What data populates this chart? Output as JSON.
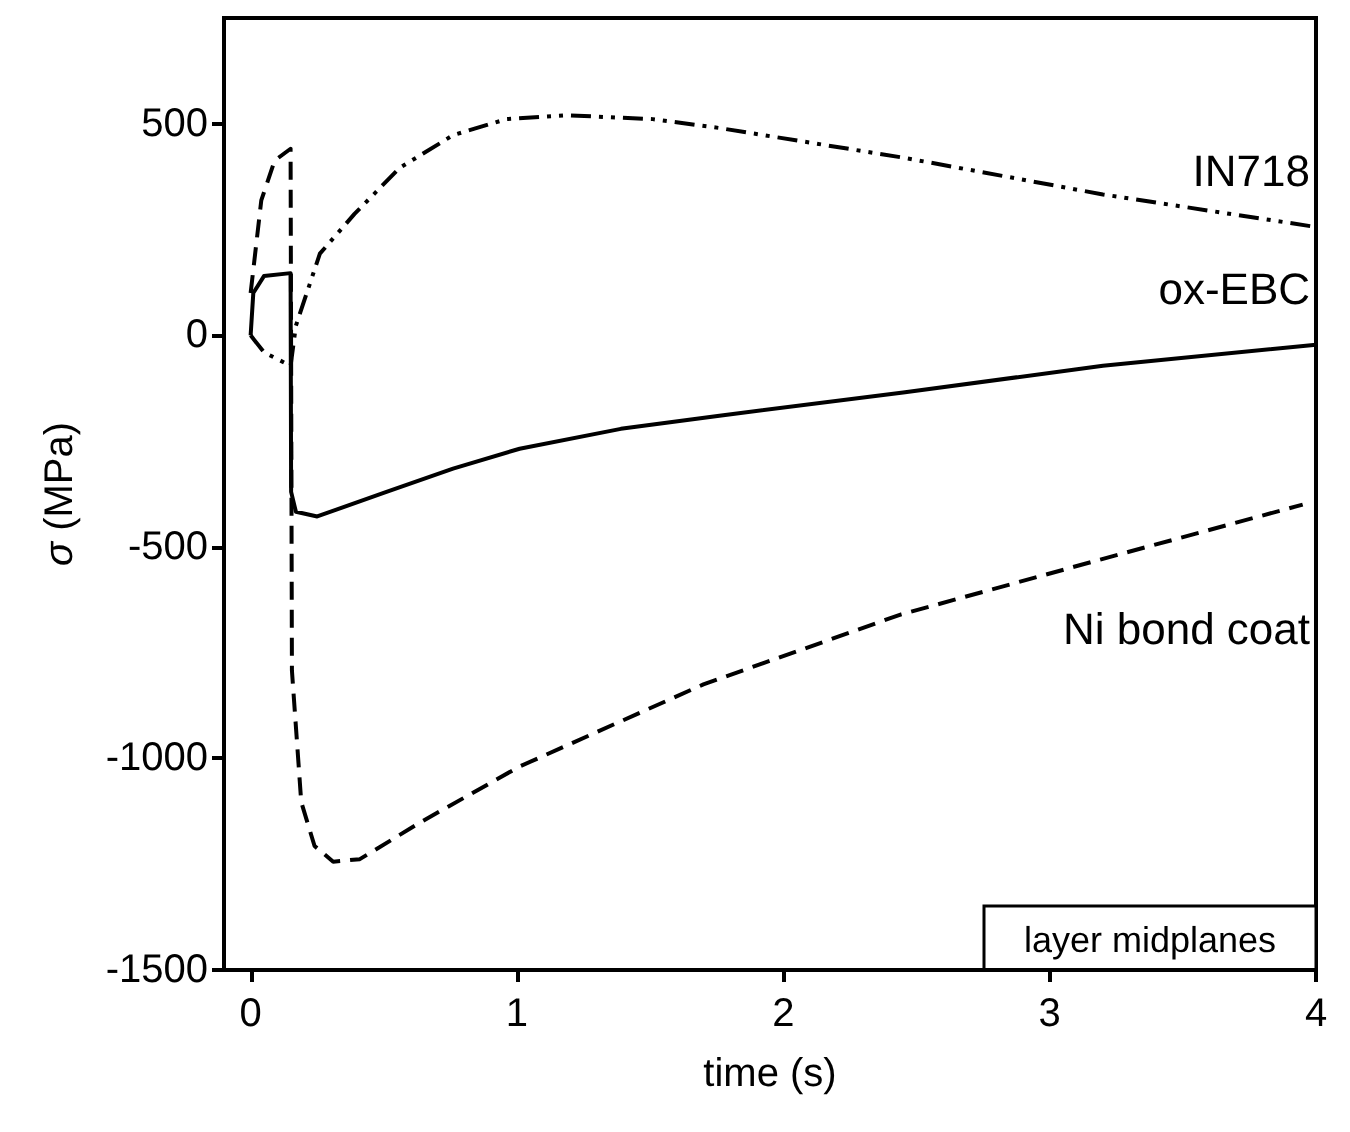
{
  "chart_data": {
    "type": "line",
    "xlabel": "time (s)",
    "ylabel": "σ (MPa)",
    "xlim": [
      -0.1,
      4
    ],
    "ylim": [
      -1500,
      750
    ],
    "xticks": [
      0,
      1,
      2,
      3,
      4
    ],
    "yticks": [
      -1500,
      -1000,
      -500,
      0,
      500
    ],
    "grid": false,
    "legend": false,
    "marker": "none",
    "annotations": [
      "layer midplanes"
    ],
    "series": [
      {
        "name": "IN718",
        "color": "#000000",
        "line_style": "dashdot",
        "x": [
          0,
          0.05,
          0.15,
          0.17,
          0.26,
          0.39,
          0.56,
          0.76,
          0.96,
          1.19,
          1.51,
          1.76,
          2.45,
          3.2,
          4
        ],
        "values": [
          0,
          -40,
          -72,
          23,
          193,
          287,
          396,
          473,
          511,
          520,
          511,
          490,
          420,
          333,
          256
        ]
      },
      {
        "name": "ox-EBC",
        "color": "#000000",
        "line_style": "solid",
        "x": [
          0,
          0.01,
          0.05,
          0.15,
          0.152,
          0.17,
          0.25,
          0.51,
          0.76,
          1.01,
          1.39,
          1.76,
          2.45,
          3.2,
          4
        ],
        "values": [
          0,
          100,
          140,
          147,
          -370,
          -417,
          -428,
          -370,
          -315,
          -268,
          -221,
          -190,
          -135,
          -72,
          -22
        ]
      },
      {
        "name": "Ni bond coat",
        "color": "#000000",
        "line_style": "dashed",
        "x": [
          0,
          0.04,
          0.09,
          0.15,
          0.155,
          0.19,
          0.24,
          0.31,
          0.41,
          0.64,
          1.01,
          1.7,
          2.44,
          3.19,
          3.95
        ],
        "values": [
          100,
          319,
          413,
          441,
          -792,
          -1103,
          -1207,
          -1244,
          -1238,
          -1150,
          -1019,
          -825,
          -660,
          -530,
          -400
        ]
      }
    ]
  }
}
